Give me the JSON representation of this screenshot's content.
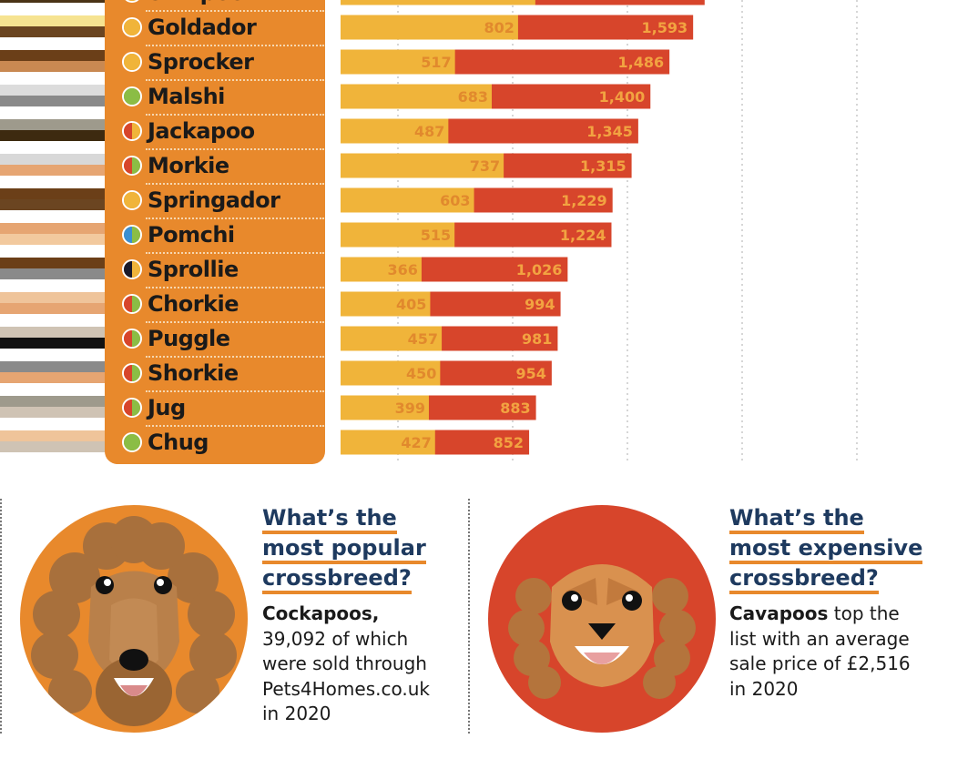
{
  "chart_data": {
    "type": "bar",
    "categories": [
      "Shihpoo",
      "Goldador",
      "Sprocker",
      "Malshi",
      "Jackapoo",
      "Morkie",
      "Springador",
      "Pomchi",
      "Sprollie",
      "Chorkie",
      "Puggle",
      "Shorkie",
      "Jug",
      "Chug"
    ],
    "series": [
      {
        "name": "",
        "values": [
          null,
          802,
          517,
          683,
          487,
          737,
          603,
          515,
          366,
          405,
          457,
          450,
          399,
          427
        ],
        "labels": [
          "",
          "802",
          "517",
          "683",
          "487",
          "737",
          "603",
          "515",
          "366",
          "405",
          "457",
          "450",
          "399",
          "427"
        ]
      },
      {
        "name": "",
        "values": [
          null,
          1593,
          1486,
          1400,
          1345,
          1315,
          1229,
          1224,
          1026,
          994,
          981,
          954,
          883,
          852
        ],
        "labels": [
          "",
          "1,593",
          "1,486",
          "1,400",
          "1,345",
          "1,315",
          "1,229",
          "1,224",
          "1,026",
          "994",
          "981",
          "954",
          "883",
          "852"
        ]
      }
    ],
    "xlim": [
      0,
      2500
    ],
    "grid": true,
    "colors": {
      "low": "#f0b43a",
      "high": "#d7452b",
      "panel": "#e8892c"
    }
  },
  "breeds": [
    {
      "name": "Shihpoo",
      "dot": [
        "#f0b43a",
        "#f0b43a"
      ],
      "strand": [
        "#f4e28a",
        "#4a3316"
      ]
    },
    {
      "name": "Goldador",
      "dot": [
        "#f0b43a",
        "#f0b43a"
      ],
      "strand": [
        "#f6e391",
        "#6b4521"
      ]
    },
    {
      "name": "Sprocker",
      "dot": [
        "#f0b43a",
        "#f0b43a"
      ],
      "strand": [
        "#6b3f18",
        "#c98952"
      ]
    },
    {
      "name": "Malshi",
      "dot": [
        "#8bbd45",
        "#8bbd45"
      ],
      "strand": [
        "#dcdcdc",
        "#8a8a8a"
      ]
    },
    {
      "name": "Jackapoo",
      "dot": [
        "#d7452b",
        "#f0b43a"
      ],
      "strand": [
        "#9e9a8c",
        "#3d2a10"
      ]
    },
    {
      "name": "Morkie",
      "dot": [
        "#d7452b",
        "#8bbd45"
      ],
      "strand": [
        "#d8d8d8",
        "#e6a572"
      ]
    },
    {
      "name": "Springador",
      "dot": [
        "#f0b43a",
        "#f0b43a"
      ],
      "strand": [
        "#6b3f18",
        "#6b4521"
      ]
    },
    {
      "name": "Pomchi",
      "dot": [
        "#3b8fd1",
        "#8bbd45"
      ],
      "strand": [
        "#e6a572",
        "#f2c99e"
      ]
    },
    {
      "name": "Sprollie",
      "dot": [
        "#1a1a2a",
        "#f0b43a"
      ],
      "strand": [
        "#6b3f18",
        "#8a8a8a"
      ]
    },
    {
      "name": "Chorkie",
      "dot": [
        "#d7452b",
        "#8bbd45"
      ],
      "strand": [
        "#efc49a",
        "#e6a572"
      ]
    },
    {
      "name": "Puggle",
      "dot": [
        "#d7452b",
        "#8bbd45"
      ],
      "strand": [
        "#cfc3b4",
        "#111111"
      ]
    },
    {
      "name": "Shorkie",
      "dot": [
        "#d7452b",
        "#8bbd45"
      ],
      "strand": [
        "#8a8a8a",
        "#e6a572"
      ]
    },
    {
      "name": "Jug",
      "dot": [
        "#d7452b",
        "#8bbd45"
      ],
      "strand": [
        "#9e9a8c",
        "#cfc3b4"
      ]
    },
    {
      "name": "Chug",
      "dot": [
        "#8bbd45",
        "#8bbd45"
      ],
      "strand": [
        "#efc49a",
        "#cfc3b4"
      ]
    }
  ],
  "panels": {
    "popular": {
      "heading": [
        "What’s the",
        "most popular",
        "crossbreed?"
      ],
      "bold": "Cockapoos,",
      "body": [
        "39,092 of which",
        "were sold through",
        "Pets4Homes.co.uk",
        "in 2020"
      ],
      "circle_color": "#e8892c",
      "icon": "poodle-dog-icon"
    },
    "expensive": {
      "heading": [
        "What’s the",
        "most expensive",
        "crossbreed?"
      ],
      "bold": "Cavapoos",
      "body_first": " top the",
      "body": [
        "list with an average",
        "sale price of £2,516",
        "in 2020"
      ],
      "circle_color": "#d7452b",
      "icon": "cavapoo-dog-icon"
    }
  }
}
